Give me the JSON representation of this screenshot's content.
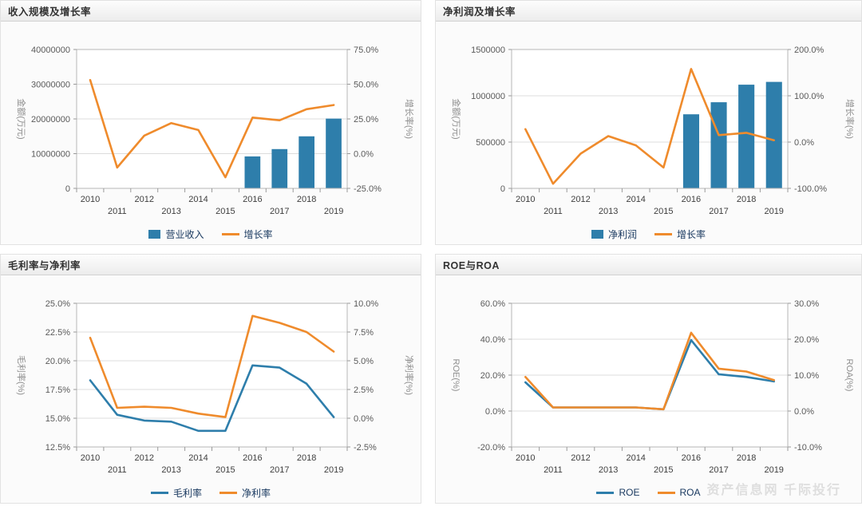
{
  "watermark": "资产信息网 千际投行",
  "colors": {
    "bar_blue": "#2e7eab",
    "line_blue": "#2e7eab",
    "line_orange": "#ef8b2c"
  },
  "chart_data": [
    {
      "type": "bar",
      "title": "收入规模及增长率",
      "categories": [
        "2010",
        "2011",
        "2012",
        "2013",
        "2014",
        "2015",
        "2016",
        "2017",
        "2018",
        "2019"
      ],
      "left_axis": {
        "label": "金额(万元)",
        "min": 0,
        "max": 40000000,
        "step": 10000000,
        "format": "int"
      },
      "right_axis": {
        "label": "增长率(%)",
        "min": -25,
        "max": 75,
        "step": 25,
        "format": "pct"
      },
      "legend_position": "bottom",
      "grid": true,
      "series": [
        {
          "name": "营业收入",
          "kind": "bar",
          "axis": "left",
          "color": "#2e7eab",
          "values": [
            0,
            0,
            0,
            0,
            0,
            0,
            9200000,
            11300000,
            15000000,
            20100000
          ]
        },
        {
          "name": "增长率",
          "kind": "line",
          "axis": "right",
          "color": "#ef8b2c",
          "values": [
            53,
            -10,
            13,
            22,
            17,
            -17,
            26,
            24,
            32,
            35
          ]
        }
      ]
    },
    {
      "type": "bar",
      "title": "净利润及增长率",
      "categories": [
        "2010",
        "2011",
        "2012",
        "2013",
        "2014",
        "2015",
        "2016",
        "2017",
        "2018",
        "2019"
      ],
      "left_axis": {
        "label": "金额(万元)",
        "min": 0,
        "max": 1500000,
        "step": 500000,
        "format": "int"
      },
      "right_axis": {
        "label": "增长率(%)",
        "min": -100,
        "max": 200,
        "step": 100,
        "format": "pct"
      },
      "legend_position": "bottom",
      "grid": true,
      "series": [
        {
          "name": "净利润",
          "kind": "bar",
          "axis": "left",
          "color": "#2e7eab",
          "values": [
            0,
            0,
            0,
            0,
            0,
            0,
            800000,
            930000,
            1120000,
            1150000
          ]
        },
        {
          "name": "增长率",
          "kind": "line",
          "axis": "right",
          "color": "#ef8b2c",
          "values": [
            28,
            -90,
            -25,
            13,
            -7,
            -55,
            158,
            15,
            20,
            4
          ]
        }
      ]
    },
    {
      "type": "line",
      "title": "毛利率与净利率",
      "categories": [
        "2010",
        "2011",
        "2012",
        "2013",
        "2014",
        "2015",
        "2016",
        "2017",
        "2018",
        "2019"
      ],
      "left_axis": {
        "label": "毛利率(%)",
        "min": 12.5,
        "max": 25,
        "step": 2.5,
        "format": "pct"
      },
      "right_axis": {
        "label": "净利率(%)",
        "min": -2.5,
        "max": 10,
        "step": 2.5,
        "format": "pct"
      },
      "legend_position": "bottom",
      "grid": true,
      "series": [
        {
          "name": "毛利率",
          "kind": "line",
          "axis": "left",
          "color": "#2e7eab",
          "values": [
            18.3,
            15.3,
            14.8,
            14.7,
            13.9,
            13.9,
            19.6,
            19.4,
            18.0,
            15.1
          ]
        },
        {
          "name": "净利率",
          "kind": "line",
          "axis": "right",
          "color": "#ef8b2c",
          "values": [
            7.0,
            0.9,
            1.0,
            0.9,
            0.4,
            0.1,
            8.9,
            8.3,
            7.5,
            5.8
          ]
        }
      ]
    },
    {
      "type": "line",
      "title": "ROE与ROA",
      "categories": [
        "2010",
        "2011",
        "2012",
        "2013",
        "2014",
        "2015",
        "2016",
        "2017",
        "2018",
        "2019"
      ],
      "left_axis": {
        "label": "ROE(%)",
        "min": -20,
        "max": 60,
        "step": 20,
        "format": "pct"
      },
      "right_axis": {
        "label": "ROA(%)",
        "min": -10,
        "max": 30,
        "step": 10,
        "format": "pct"
      },
      "legend_position": "bottom",
      "grid": true,
      "series": [
        {
          "name": "ROE",
          "kind": "line",
          "axis": "left",
          "color": "#2e7eab",
          "values": [
            16,
            2,
            2,
            2,
            2,
            1,
            39.5,
            20.5,
            19,
            16.5
          ]
        },
        {
          "name": "ROA",
          "kind": "line",
          "axis": "right",
          "color": "#ef8b2c",
          "values": [
            9.5,
            1,
            1,
            1,
            1,
            0.5,
            21.8,
            11.8,
            11,
            8.6
          ]
        }
      ]
    }
  ]
}
